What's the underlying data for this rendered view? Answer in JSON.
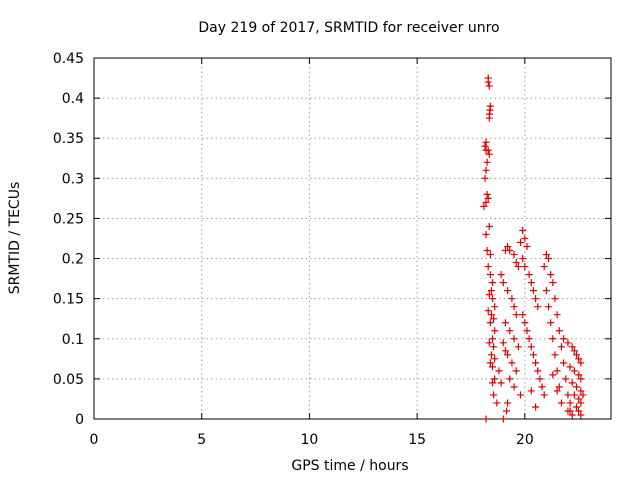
{
  "chart_data": {
    "type": "scatter",
    "title": "Day 219 of 2017, SRMTID for receiver unro",
    "xlabel": "GPS time / hours",
    "ylabel": "SRMTID / TECUs",
    "xlim": [
      0,
      24
    ],
    "ylim": [
      0,
      0.45
    ],
    "xticks": [
      0,
      5,
      10,
      15,
      20
    ],
    "yticks": [
      0,
      0.05,
      0.1,
      0.15,
      0.2,
      0.25,
      0.3,
      0.35,
      0.4,
      0.45
    ],
    "xtick_labels": [
      "0",
      "5",
      "10",
      "15",
      "20"
    ],
    "ytick_labels": [
      "0",
      "0.05",
      "0.1",
      "0.15",
      "0.2",
      "0.25",
      "0.3",
      "0.35",
      "0.4",
      "0.45"
    ],
    "grid": true,
    "marker": "plus",
    "color": "#e00000",
    "series": [
      {
        "points": [
          [
            18.3,
            0.42
          ],
          [
            18.3,
            0.425
          ],
          [
            18.35,
            0.415
          ],
          [
            18.4,
            0.39
          ],
          [
            18.38,
            0.385
          ],
          [
            18.36,
            0.38
          ],
          [
            18.35,
            0.375
          ],
          [
            18.2,
            0.345
          ],
          [
            18.15,
            0.34
          ],
          [
            18.2,
            0.335
          ],
          [
            18.3,
            0.335
          ],
          [
            18.35,
            0.33
          ],
          [
            18.25,
            0.32
          ],
          [
            18.2,
            0.31
          ],
          [
            18.15,
            0.3
          ],
          [
            18.25,
            0.28
          ],
          [
            18.3,
            0.275
          ],
          [
            18.2,
            0.27
          ],
          [
            18.1,
            0.265
          ],
          [
            18.35,
            0.24
          ],
          [
            18.2,
            0.23
          ],
          [
            18.25,
            0.21
          ],
          [
            18.4,
            0.205
          ],
          [
            18.3,
            0.19
          ],
          [
            18.4,
            0.18
          ],
          [
            18.5,
            0.17
          ],
          [
            18.45,
            0.16
          ],
          [
            18.35,
            0.155
          ],
          [
            18.5,
            0.15
          ],
          [
            18.6,
            0.14
          ],
          [
            18.3,
            0.135
          ],
          [
            18.45,
            0.13
          ],
          [
            18.55,
            0.125
          ],
          [
            18.4,
            0.12
          ],
          [
            18.6,
            0.11
          ],
          [
            18.5,
            0.1
          ],
          [
            18.35,
            0.095
          ],
          [
            18.55,
            0.09
          ],
          [
            18.45,
            0.08
          ],
          [
            18.6,
            0.075
          ],
          [
            18.4,
            0.07
          ],
          [
            18.5,
            0.065
          ],
          [
            18.6,
            0.05
          ],
          [
            18.5,
            0.045
          ],
          [
            18.55,
            0.03
          ],
          [
            18.7,
            0.02
          ],
          [
            18.9,
            0.18
          ],
          [
            19.0,
            0.17
          ],
          [
            19.2,
            0.16
          ],
          [
            19.4,
            0.15
          ],
          [
            19.5,
            0.14
          ],
          [
            19.6,
            0.13
          ],
          [
            19.1,
            0.12
          ],
          [
            19.3,
            0.11
          ],
          [
            19.5,
            0.1
          ],
          [
            19.7,
            0.09
          ],
          [
            19.2,
            0.08
          ],
          [
            19.4,
            0.07
          ],
          [
            19.6,
            0.06
          ],
          [
            19.3,
            0.05
          ],
          [
            19.5,
            0.04
          ],
          [
            19.8,
            0.03
          ],
          [
            19.2,
            0.02
          ],
          [
            19.1,
            0.21
          ],
          [
            19.2,
            0.215
          ],
          [
            19.3,
            0.21
          ],
          [
            19.5,
            0.205
          ],
          [
            19.6,
            0.195
          ],
          [
            19.7,
            0.19
          ],
          [
            19.8,
            0.22
          ],
          [
            19.9,
            0.235
          ],
          [
            20.0,
            0.225
          ],
          [
            20.1,
            0.215
          ],
          [
            19.9,
            0.2
          ],
          [
            20.0,
            0.19
          ],
          [
            20.2,
            0.18
          ],
          [
            20.3,
            0.17
          ],
          [
            20.4,
            0.16
          ],
          [
            20.5,
            0.15
          ],
          [
            20.6,
            0.14
          ],
          [
            19.9,
            0.13
          ],
          [
            20.0,
            0.12
          ],
          [
            20.1,
            0.11
          ],
          [
            20.2,
            0.1
          ],
          [
            20.3,
            0.09
          ],
          [
            20.4,
            0.08
          ],
          [
            20.5,
            0.07
          ],
          [
            20.6,
            0.06
          ],
          [
            20.7,
            0.05
          ],
          [
            20.8,
            0.04
          ],
          [
            20.9,
            0.03
          ],
          [
            21.0,
            0.205
          ],
          [
            21.1,
            0.2
          ],
          [
            20.9,
            0.19
          ],
          [
            21.2,
            0.18
          ],
          [
            21.3,
            0.17
          ],
          [
            21.0,
            0.16
          ],
          [
            21.4,
            0.15
          ],
          [
            21.1,
            0.14
          ],
          [
            21.5,
            0.13
          ],
          [
            21.2,
            0.12
          ],
          [
            21.6,
            0.11
          ],
          [
            21.3,
            0.1
          ],
          [
            21.7,
            0.09
          ],
          [
            21.4,
            0.08
          ],
          [
            21.8,
            0.07
          ],
          [
            21.5,
            0.06
          ],
          [
            21.9,
            0.05
          ],
          [
            21.6,
            0.04
          ],
          [
            22.0,
            0.03
          ],
          [
            21.7,
            0.02
          ],
          [
            22.1,
            0.01
          ],
          [
            21.8,
            0.1
          ],
          [
            22.0,
            0.095
          ],
          [
            22.2,
            0.09
          ],
          [
            22.3,
            0.085
          ],
          [
            22.4,
            0.08
          ],
          [
            22.5,
            0.075
          ],
          [
            22.6,
            0.07
          ],
          [
            22.1,
            0.065
          ],
          [
            22.3,
            0.06
          ],
          [
            22.5,
            0.055
          ],
          [
            22.6,
            0.05
          ],
          [
            22.2,
            0.045
          ],
          [
            22.4,
            0.04
          ],
          [
            22.6,
            0.035
          ],
          [
            22.3,
            0.03
          ],
          [
            22.5,
            0.025
          ],
          [
            22.6,
            0.02
          ],
          [
            22.4,
            0.015
          ],
          [
            22.5,
            0.01
          ],
          [
            22.6,
            0.005
          ],
          [
            22.7,
            0.03
          ],
          [
            22.0,
            0.01
          ],
          [
            22.2,
            0.005
          ],
          [
            22.1,
            0.02
          ],
          [
            19.0,
            0.095
          ],
          [
            19.1,
            0.085
          ],
          [
            18.8,
            0.06
          ],
          [
            18.9,
            0.045
          ],
          [
            19.0,
            0.0
          ],
          [
            18.2,
            0.0
          ],
          [
            19.15,
            0.01
          ],
          [
            20.3,
            0.035
          ],
          [
            20.5,
            0.015
          ],
          [
            21.3,
            0.055
          ],
          [
            21.5,
            0.035
          ]
        ]
      }
    ]
  }
}
